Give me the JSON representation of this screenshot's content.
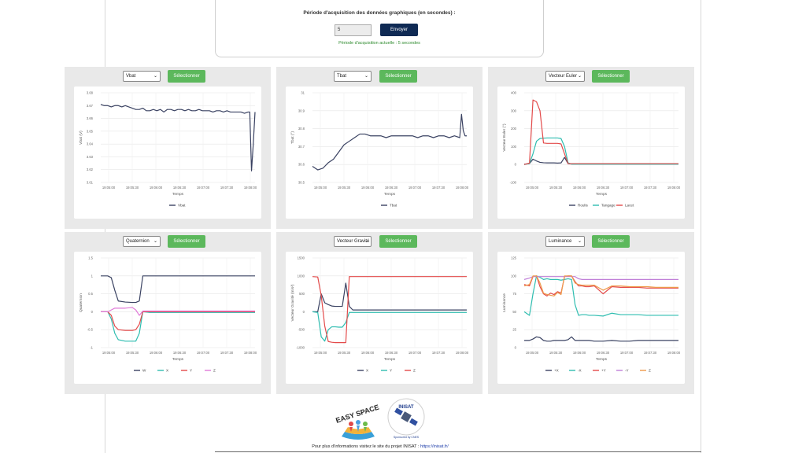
{
  "form": {
    "title": "Période d'acquisition des données graphiques (en secondes) :",
    "input_value": "5",
    "send_label": "Envoyer",
    "current_period": "Période d'acquisition actuelle : 5 secondes"
  },
  "select_label": "Sélectionner",
  "x_title": "Temps",
  "x_ticks": [
    "19:05:00",
    "19:05:30",
    "19:06:00",
    "19:06:30",
    "19:07:00",
    "19:07:30",
    "19:08:00"
  ],
  "colors": {
    "dark": "#3a4262",
    "teal": "#2fbdb0",
    "red": "#e34a4a",
    "pink": "#e07ad8",
    "orange": "#ee9a4a",
    "purple": "#c080d8",
    "button_green": "#5cb85c",
    "button_navy": "#0f2a54"
  },
  "panels": [
    {
      "id": "vbat",
      "select": "Vbat"
    },
    {
      "id": "tbat",
      "select": "Tbat"
    },
    {
      "id": "euler",
      "select": "Vecteur Euler"
    },
    {
      "id": "quat",
      "select": "Quaternion"
    },
    {
      "id": "gravity",
      "select": "Vecteur Gravité"
    },
    {
      "id": "lum",
      "select": "Luminance"
    }
  ],
  "chart_data": [
    {
      "type": "line",
      "ylabel": "Vbat (V)",
      "xlabel": "Temps",
      "ylim": [
        3.61,
        3.68
      ],
      "yticks": [
        "3.68",
        "3.67",
        "3.66",
        "3.65",
        "3.64",
        "3.63",
        "3.62",
        "3.61"
      ],
      "x": [
        0,
        2,
        4,
        6,
        8,
        10,
        12,
        14,
        16,
        18,
        20,
        22,
        24,
        26,
        28,
        30,
        32,
        34,
        36,
        38,
        40,
        42,
        44,
        46,
        48,
        50,
        52,
        54,
        56,
        58,
        60,
        62,
        64,
        66,
        68,
        70,
        72,
        74,
        76,
        78,
        80,
        82,
        84,
        85,
        86,
        87,
        88
      ],
      "series": [
        {
          "name": "Vbat",
          "color": "#3a4262",
          "values": [
            3.671,
            3.67,
            3.67,
            3.669,
            3.67,
            3.67,
            3.669,
            3.67,
            3.669,
            3.668,
            3.667,
            3.667,
            3.668,
            3.666,
            3.666,
            3.667,
            3.666,
            3.667,
            3.665,
            3.667,
            3.667,
            3.666,
            3.667,
            3.667,
            3.666,
            3.667,
            3.666,
            3.666,
            3.667,
            3.666,
            3.666,
            3.666,
            3.665,
            3.666,
            3.666,
            3.665,
            3.666,
            3.665,
            3.665,
            3.665,
            3.665,
            3.664,
            3.665,
            3.665,
            3.619,
            3.64,
            3.665
          ]
        }
      ]
    },
    {
      "type": "line",
      "ylabel": "Tbat (°)",
      "xlabel": "Temps",
      "ylim": [
        30.5,
        31
      ],
      "yticks": [
        "31",
        "30.9",
        "30.8",
        "30.7",
        "30.6",
        "30.5"
      ],
      "x": [
        0,
        3,
        6,
        9,
        12,
        15,
        18,
        21,
        24,
        27,
        30,
        33,
        36,
        39,
        42,
        45,
        48,
        51,
        54,
        57,
        60,
        63,
        66,
        69,
        72,
        75,
        78,
        81,
        84,
        85,
        86,
        87,
        88
      ],
      "series": [
        {
          "name": "Tbat",
          "color": "#3a4262",
          "values": [
            30.59,
            30.57,
            30.58,
            30.61,
            30.63,
            30.67,
            30.71,
            30.73,
            30.75,
            30.77,
            30.77,
            30.76,
            30.76,
            30.76,
            30.75,
            30.76,
            30.76,
            30.76,
            30.76,
            30.76,
            30.75,
            30.76,
            30.76,
            30.75,
            30.76,
            30.76,
            30.75,
            30.76,
            30.75,
            30.88,
            30.79,
            30.76,
            30.76
          ]
        }
      ]
    },
    {
      "type": "line",
      "ylabel": "Vecteur Euler (°)",
      "xlabel": "Temps",
      "ylim": [
        -100,
        400
      ],
      "yticks": [
        "400",
        "300",
        "200",
        "100",
        "0",
        "-100"
      ],
      "x": [
        0,
        3,
        5,
        7,
        9,
        11,
        13,
        15,
        17,
        19,
        21,
        23,
        25,
        27,
        29,
        31,
        33,
        35,
        37,
        40,
        45,
        50,
        55,
        60,
        65,
        70,
        75,
        80,
        85,
        88
      ],
      "series": [
        {
          "name": "Roulis",
          "color": "#3a4262",
          "values": [
            2,
            5,
            30,
            20,
            12,
            10,
            9,
            9,
            9,
            8,
            9,
            40,
            5,
            3,
            3,
            3,
            3,
            3,
            3,
            3,
            3,
            3,
            3,
            3,
            3,
            3,
            3,
            3,
            3,
            3
          ]
        },
        {
          "name": "Tangage",
          "color": "#2fbdb0",
          "values": [
            0,
            5,
            60,
            130,
            145,
            147,
            148,
            148,
            148,
            148,
            145,
            100,
            10,
            2,
            2,
            2,
            2,
            2,
            2,
            2,
            2,
            2,
            2,
            2,
            2,
            2,
            2,
            2,
            2,
            2
          ]
        },
        {
          "name": "Lacet",
          "color": "#e34a4a",
          "values": [
            0,
            8,
            360,
            350,
            300,
            120,
            118,
            118,
            118,
            118,
            115,
            60,
            5,
            5,
            5,
            5,
            5,
            5,
            5,
            5,
            5,
            5,
            5,
            5,
            5,
            5,
            5,
            5,
            5,
            5
          ]
        }
      ]
    },
    {
      "type": "line",
      "ylabel": "Quaternion",
      "xlabel": "Temps",
      "ylim": [
        -1,
        1.5
      ],
      "yticks": [
        "1.5",
        "1",
        "0.5",
        "0",
        "-0.5",
        "-1"
      ],
      "x": [
        0,
        4,
        6,
        8,
        10,
        14,
        18,
        20,
        22,
        24,
        28,
        32,
        36,
        40,
        48,
        56,
        64,
        72,
        80,
        88
      ],
      "series": [
        {
          "name": "W",
          "color": "#3a4262",
          "values": [
            1,
            1,
            0.95,
            0.6,
            0.3,
            0.27,
            0.26,
            0.26,
            0.3,
            1,
            1,
            1,
            1,
            1,
            1,
            1,
            1,
            1,
            1,
            1
          ]
        },
        {
          "name": "X",
          "color": "#2fbdb0",
          "values": [
            0,
            0,
            -0.2,
            -0.6,
            -0.78,
            -0.82,
            -0.82,
            -0.82,
            -0.6,
            0,
            -0.02,
            -0.02,
            -0.02,
            -0.02,
            -0.02,
            -0.02,
            -0.02,
            -0.02,
            -0.02,
            -0.02
          ]
        },
        {
          "name": "Y",
          "color": "#e34a4a",
          "values": [
            0,
            0,
            -0.1,
            -0.4,
            -0.5,
            -0.52,
            -0.52,
            -0.5,
            -0.35,
            0,
            0,
            0,
            0,
            0,
            0,
            0,
            0,
            0,
            0,
            0
          ]
        },
        {
          "name": "Z",
          "color": "#e07ad8",
          "values": [
            0,
            0,
            0.05,
            0.1,
            0.1,
            0.1,
            0.12,
            0.05,
            -0.1,
            0.02,
            0.02,
            0.02,
            0.02,
            0.02,
            0.02,
            0.02,
            0.02,
            0.02,
            0.02,
            0.02
          ]
        }
      ]
    },
    {
      "type": "line",
      "ylabel": "Vecteur Gravité (m/s²)",
      "xlabel": "Temps",
      "ylim": [
        -1000,
        1500
      ],
      "yticks": [
        "1500",
        "1000",
        "500",
        "0",
        "-500",
        "-1000"
      ],
      "x": [
        0,
        3,
        5,
        7,
        9,
        11,
        13,
        15,
        17,
        19,
        21,
        23,
        25,
        27,
        29,
        31,
        33,
        35,
        37,
        40,
        48,
        56,
        64,
        72,
        80,
        88
      ],
      "series": [
        {
          "name": "X",
          "color": "#3a4262",
          "values": [
            0,
            0,
            500,
            250,
            200,
            160,
            150,
            150,
            150,
            800,
            150,
            50,
            50,
            50,
            50,
            50,
            50,
            50,
            50,
            50,
            50,
            50,
            50,
            50,
            50,
            50
          ]
        },
        {
          "name": "Y",
          "color": "#2fbdb0",
          "values": [
            0,
            -20,
            -700,
            -820,
            -500,
            -420,
            -420,
            -430,
            -430,
            -300,
            -20,
            -20,
            -20,
            -20,
            -20,
            -20,
            -20,
            -20,
            -20,
            -20,
            -20,
            -20,
            -20,
            -20,
            -20,
            -20
          ]
        },
        {
          "name": "Z",
          "color": "#e34a4a",
          "values": [
            980,
            970,
            450,
            -400,
            -830,
            -850,
            -860,
            -860,
            -860,
            -860,
            980,
            980,
            980,
            980,
            980,
            980,
            980,
            980,
            980,
            980,
            980,
            980,
            980,
            980,
            980,
            980
          ]
        }
      ]
    },
    {
      "type": "line",
      "ylabel": "Luminance",
      "xlabel": "Temps",
      "ylim": [
        0,
        125
      ],
      "yticks": [
        "125",
        "100",
        "75",
        "50",
        "25",
        "0"
      ],
      "x": [
        0,
        3,
        5,
        7,
        9,
        11,
        13,
        15,
        17,
        19,
        21,
        23,
        25,
        27,
        29,
        31,
        33,
        35,
        37,
        40,
        45,
        50,
        55,
        60,
        65,
        70,
        75,
        80,
        85,
        88
      ],
      "series": [
        {
          "name": "+X",
          "color": "#3a4262",
          "values": [
            10,
            10,
            12,
            15,
            14,
            10,
            9,
            9,
            10,
            10,
            10,
            10,
            11,
            15,
            10,
            10,
            10,
            10,
            10,
            9,
            9,
            10,
            9,
            9,
            10,
            10,
            10,
            10,
            10,
            10
          ]
        },
        {
          "name": "-X",
          "color": "#2fbdb0",
          "values": [
            50,
            45,
            75,
            100,
            98,
            95,
            96,
            95,
            95,
            95,
            94,
            95,
            96,
            95,
            60,
            45,
            46,
            46,
            45,
            45,
            44,
            48,
            46,
            46,
            46,
            45,
            45,
            45,
            45,
            45
          ]
        },
        {
          "name": "+Y",
          "color": "#e34a4a",
          "values": [
            88,
            86,
            99,
            100,
            85,
            75,
            72,
            76,
            74,
            78,
            76,
            99,
            100,
            100,
            92,
            86,
            86,
            85,
            85,
            86,
            75,
            85,
            84,
            84,
            84,
            83,
            83,
            83,
            83,
            83
          ]
        },
        {
          "name": "-Y",
          "color": "#c080d8",
          "values": [
            95,
            97,
            99,
            99,
            99,
            99,
            99,
            99,
            99,
            99,
            99,
            99,
            99,
            99,
            99,
            96,
            95,
            95,
            95,
            95,
            95,
            95,
            95,
            95,
            95,
            95,
            95,
            95,
            95,
            95
          ]
        },
        {
          "name": "Z",
          "color": "#ee9a4a",
          "values": [
            86,
            88,
            100,
            100,
            90,
            76,
            74,
            73,
            72,
            77,
            74,
            100,
            100,
            100,
            90,
            88,
            87,
            87,
            87,
            87,
            80,
            86,
            86,
            85,
            85,
            85,
            84,
            84,
            84,
            84
          ]
        }
      ]
    }
  ],
  "footer": {
    "text": "Pour plus d'informations visitez le site du projet INISAT : ",
    "link": "https://inisat.fr/",
    "easy_logo_text": "EASY SPACE",
    "insat_logo_text": "INISAT",
    "insat_sub": "Sponsored by CNES"
  }
}
